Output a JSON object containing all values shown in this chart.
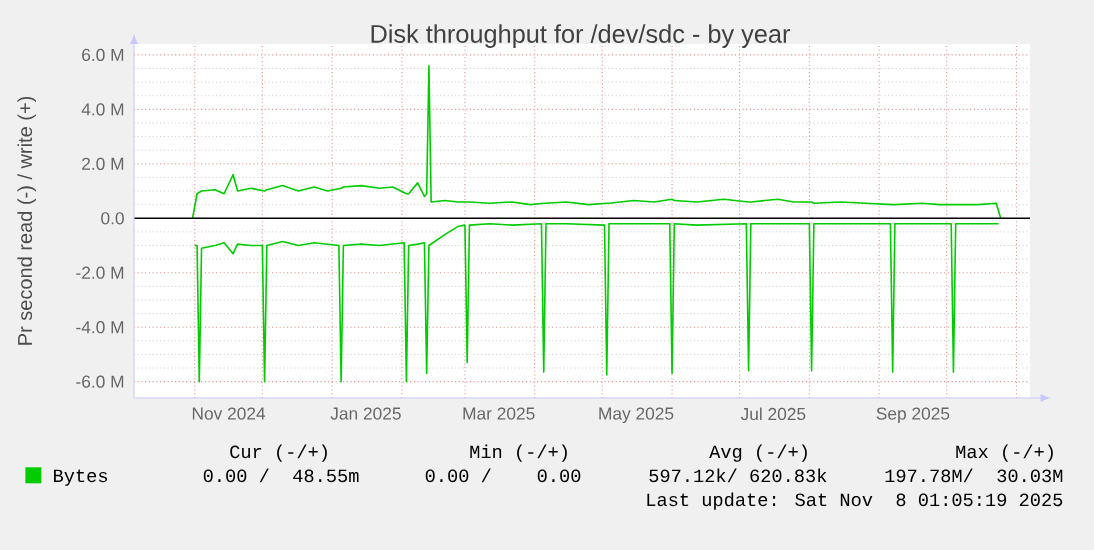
{
  "chart_data": {
    "type": "line",
    "title": "Disk throughput for /dev/sdc - by year",
    "ylabel": "Pr second read (-) / write (+)",
    "x": [
      "2024-10-31",
      "2024-11-02",
      "2024-11-03",
      "2024-11-04",
      "2024-11-10",
      "2024-11-14",
      "2024-11-18",
      "2024-11-20",
      "2024-11-26",
      "2024-12-02",
      "2024-12-03",
      "2024-12-10",
      "2024-12-17",
      "2024-12-24",
      "2024-12-30",
      "2025-01-05",
      "2025-01-06",
      "2025-01-14",
      "2025-01-22",
      "2025-01-28",
      "2025-02-03",
      "2025-02-04",
      "2025-02-08",
      "2025-02-11",
      "2025-02-12",
      "2025-02-13",
      "2025-02-14",
      "2025-02-20",
      "2025-02-26",
      "2025-03-02",
      "2025-03-03",
      "2025-03-12",
      "2025-03-22",
      "2025-03-30",
      "2025-04-05",
      "2025-04-06",
      "2025-04-15",
      "2025-04-25",
      "2025-05-03",
      "2025-05-04",
      "2025-05-15",
      "2025-05-24",
      "2025-06-01",
      "2025-06-02",
      "2025-06-12",
      "2025-06-24",
      "2025-07-05",
      "2025-07-06",
      "2025-07-18",
      "2025-07-25",
      "2025-08-02",
      "2025-08-03",
      "2025-08-15",
      "2025-08-26",
      "2025-09-07",
      "2025-09-08",
      "2025-09-20",
      "2025-09-28",
      "2025-10-04",
      "2025-10-05",
      "2025-10-15",
      "2025-10-23",
      "2025-10-25"
    ],
    "series": [
      {
        "name": "Bytes",
        "color": "#00cc00",
        "values": [
          0,
          0.9,
          0.95,
          1.0,
          1.05,
          0.9,
          1.6,
          1.0,
          1.1,
          1.0,
          1.05,
          1.2,
          1.0,
          1.15,
          1.0,
          1.1,
          1.15,
          1.2,
          1.1,
          1.15,
          0.9,
          0.9,
          1.3,
          0.8,
          0.9,
          5.6,
          0.6,
          0.65,
          0.6,
          0.6,
          0.6,
          0.55,
          0.6,
          0.5,
          0.55,
          0.55,
          0.6,
          0.5,
          0.55,
          0.55,
          0.65,
          0.6,
          0.7,
          0.65,
          0.6,
          0.7,
          0.6,
          0.6,
          0.7,
          0.6,
          0.6,
          0.55,
          0.6,
          0.55,
          0.5,
          0.5,
          0.55,
          0.5,
          0.5,
          0.5,
          0.5,
          0.55,
          0
        ]
      },
      {
        "color": "#00cc00",
        "x": [
          "2024-11-01",
          "2024-11-02",
          "2024-11-03",
          "2024-11-04",
          "2024-11-10",
          "2024-11-14",
          "2024-11-18",
          "2024-11-20",
          "2024-11-26",
          "2024-12-01",
          "2024-12-02",
          "2024-12-03",
          "2024-12-10",
          "2024-12-17",
          "2024-12-24",
          "2025-01-04",
          "2025-01-05",
          "2025-01-06",
          "2025-01-14",
          "2025-01-22",
          "2025-02-02",
          "2025-02-03",
          "2025-02-04",
          "2025-02-08",
          "2025-02-11",
          "2025-02-12",
          "2025-02-13",
          "2025-02-20",
          "2025-02-26",
          "2025-03-01",
          "2025-03-02",
          "2025-03-03",
          "2025-03-12",
          "2025-03-22",
          "2025-04-04",
          "2025-04-05",
          "2025-04-06",
          "2025-04-15",
          "2025-05-02",
          "2025-05-03",
          "2025-05-04",
          "2025-05-15",
          "2025-05-31",
          "2025-06-01",
          "2025-06-02",
          "2025-06-12",
          "2025-07-04",
          "2025-07-05",
          "2025-07-06",
          "2025-07-18",
          "2025-08-01",
          "2025-08-02",
          "2025-08-03",
          "2025-08-15",
          "2025-09-06",
          "2025-09-07",
          "2025-09-08",
          "2025-09-20",
          "2025-10-03",
          "2025-10-04",
          "2025-10-05",
          "2025-10-15",
          "2025-10-24"
        ],
        "values": [
          -1.0,
          -1.0,
          -6.0,
          -1.1,
          -1.0,
          -0.9,
          -1.3,
          -0.95,
          -1.0,
          -1.0,
          -6.0,
          -1.0,
          -0.85,
          -1.0,
          -0.9,
          -1.0,
          -6.0,
          -1.0,
          -0.95,
          -1.0,
          -0.9,
          -6.0,
          -1.0,
          -0.95,
          -0.9,
          -5.7,
          -1.0,
          -0.6,
          -0.3,
          -0.25,
          -5.3,
          -0.25,
          -0.2,
          -0.25,
          -0.2,
          -5.65,
          -0.2,
          -0.2,
          -0.25,
          -5.75,
          -0.2,
          -0.2,
          -0.2,
          -5.7,
          -0.2,
          -0.25,
          -0.2,
          -5.6,
          -0.2,
          -0.2,
          -0.2,
          -5.6,
          -0.2,
          -0.2,
          -0.2,
          -5.65,
          -0.2,
          -0.2,
          -0.2,
          -5.65,
          -0.2,
          -0.2,
          -0.2
        ]
      }
    ],
    "xlim": [
      "2024-10-05",
      "2025-11-07"
    ],
    "xticks": [
      {
        "value": "2024-11-01",
        "label": null
      },
      {
        "value": "2024-11-16",
        "label": "Nov 2024"
      },
      {
        "value": "2024-12-01",
        "label": null
      },
      {
        "value": "2025-01-01",
        "label": null
      },
      {
        "value": "2025-01-16",
        "label": "Jan 2025"
      },
      {
        "value": "2025-02-01",
        "label": null
      },
      {
        "value": "2025-03-01",
        "label": null
      },
      {
        "value": "2025-03-16",
        "label": "Mar 2025"
      },
      {
        "value": "2025-04-01",
        "label": null
      },
      {
        "value": "2025-05-01",
        "label": null
      },
      {
        "value": "2025-05-16",
        "label": "May 2025"
      },
      {
        "value": "2025-06-01",
        "label": null
      },
      {
        "value": "2025-07-01",
        "label": null
      },
      {
        "value": "2025-07-16",
        "label": "Jul 2025"
      },
      {
        "value": "2025-08-01",
        "label": null
      },
      {
        "value": "2025-09-01",
        "label": null
      },
      {
        "value": "2025-09-16",
        "label": "Sep 2025"
      },
      {
        "value": "2025-10-01",
        "label": null
      },
      {
        "value": "2025-11-01",
        "label": null
      }
    ],
    "ylim": [
      -6.6,
      6.4
    ],
    "yticks": [
      {
        "value": -6,
        "label": "-6.0 M"
      },
      {
        "value": -4,
        "label": "-4.0 M"
      },
      {
        "value": -2,
        "label": "-2.0 M"
      },
      {
        "value": 0,
        "label": "0.0"
      },
      {
        "value": 2,
        "label": "2.0 M"
      },
      {
        "value": 4,
        "label": "4.0 M"
      },
      {
        "value": 6,
        "label": "6.0 M"
      }
    ],
    "ref_lines": [
      {
        "axis": "y",
        "value": 0,
        "color": "#000000"
      }
    ],
    "grid": true,
    "legend": "bottom",
    "annotations": [
      "Cur (-/+)",
      "Min (-/+)",
      "Avg (-/+)",
      "Max (-/+)",
      "0.00 /  48.55m",
      "0.00 /    0.00",
      "597.12k/ 620.83k",
      "197.78M/  30.03M",
      "Last update: Sat Nov  8 01:05:19 2025"
    ]
  }
}
